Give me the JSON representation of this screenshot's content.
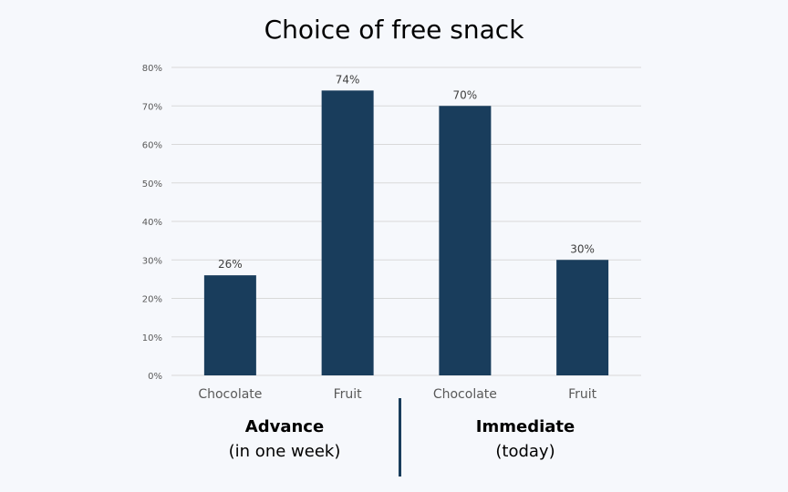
{
  "colors": {
    "bar": "#193d5c",
    "grid": "#d9d9d9",
    "axis_text": "#595959",
    "divider": "#193d5c"
  },
  "chart_data": {
    "type": "bar",
    "title": "Choice of free snack",
    "categories": [
      "Chocolate",
      "Fruit",
      "Chocolate",
      "Fruit"
    ],
    "values": [
      26,
      74,
      70,
      30
    ],
    "value_labels": [
      "26%",
      "74%",
      "70%",
      "30%"
    ],
    "ylim": [
      0,
      80
    ],
    "ytick_labels": [
      "0%",
      "10%",
      "20%",
      "30%",
      "40%",
      "50%",
      "60%",
      "70%",
      "80%"
    ],
    "grid": true,
    "groups": [
      {
        "name": "Advance",
        "subtitle": "(in one week)"
      },
      {
        "name": "Immediate",
        "subtitle": "(today)"
      }
    ]
  }
}
